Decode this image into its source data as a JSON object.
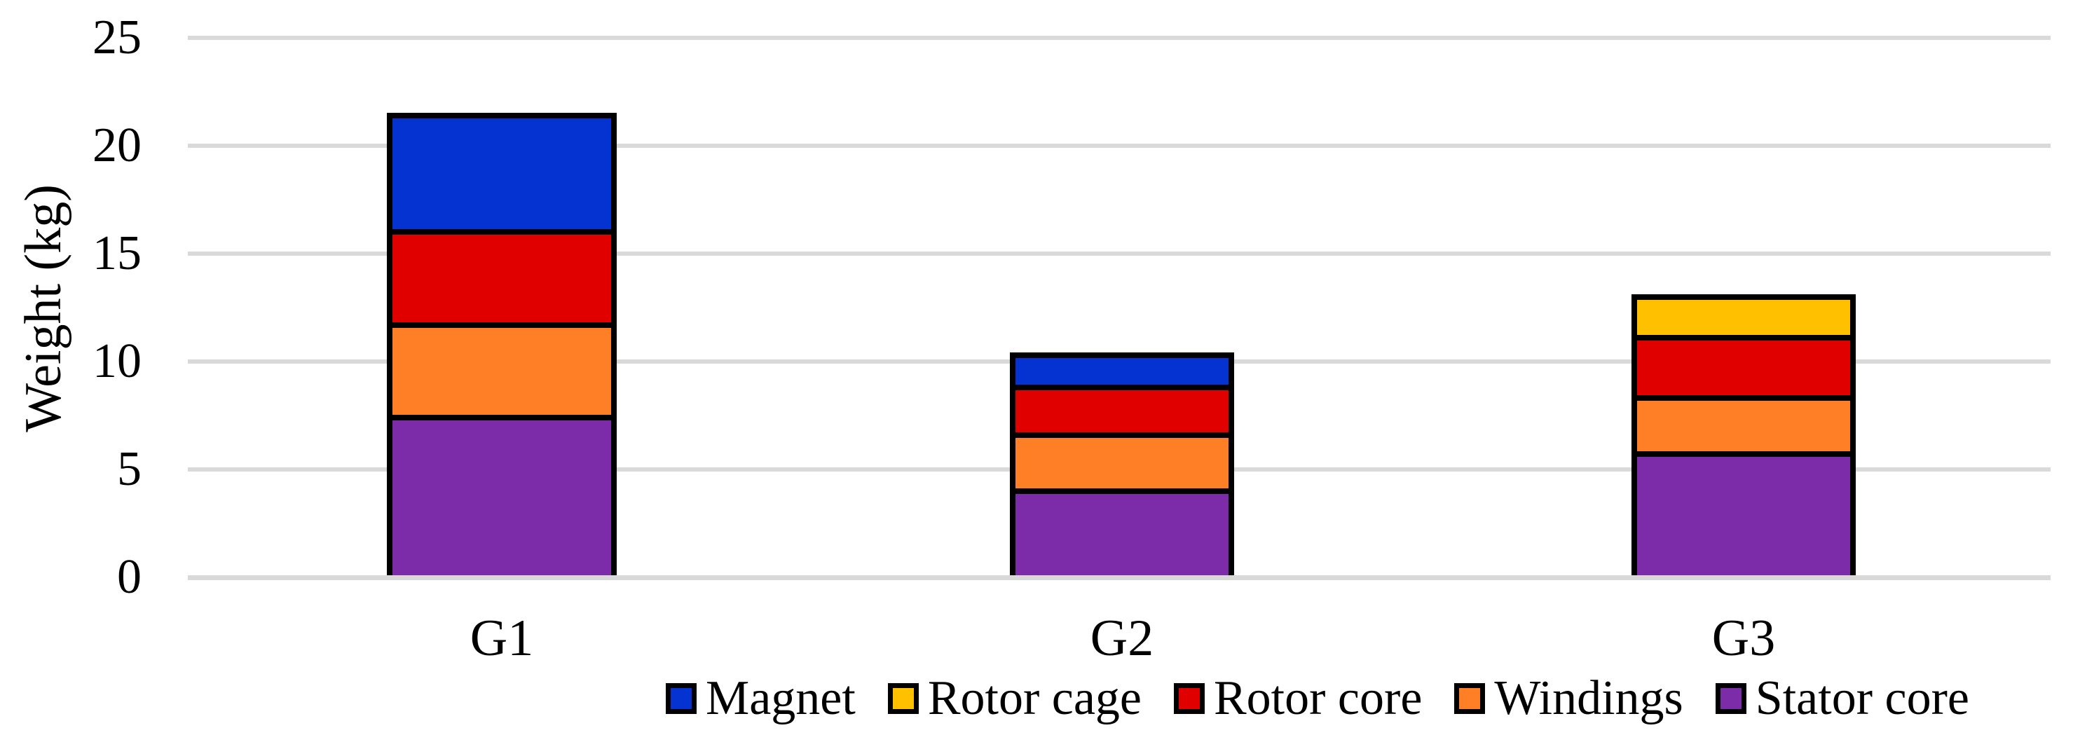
{
  "chart_data": {
    "type": "bar",
    "stacked": true,
    "title": "",
    "categories": [
      "G1",
      "G2",
      "G3"
    ],
    "series": [
      {
        "name": "Stator core",
        "color": "#7C2CA8",
        "values": [
          7.4,
          4.0,
          5.7
        ]
      },
      {
        "name": "Windings",
        "color": "#FF7F26",
        "values": [
          4.3,
          2.6,
          2.6
        ]
      },
      {
        "name": "Rotor core",
        "color": "#E00000",
        "values": [
          4.3,
          2.2,
          2.8
        ]
      },
      {
        "name": "Rotor cage",
        "color": "#FFC000",
        "values": [
          0,
          0,
          1.9
        ]
      },
      {
        "name": "Magnet",
        "color": "#0433D1",
        "values": [
          5.4,
          1.5,
          0
        ]
      }
    ],
    "xlabel": "",
    "ylabel": "Weight (kg)",
    "ylim": [
      0,
      25
    ],
    "yticks": [
      0,
      5,
      10,
      15,
      20,
      25
    ],
    "grid": "horizontal",
    "gridline_color": "#D9D9D9",
    "bar_border_color": "#000000",
    "text_color": "#000000",
    "background_color": "#FFFFFF",
    "legend_position": "bottom",
    "legend_order": [
      "Magnet",
      "Rotor cage",
      "Rotor core",
      "Windings",
      "Stator core"
    ]
  }
}
